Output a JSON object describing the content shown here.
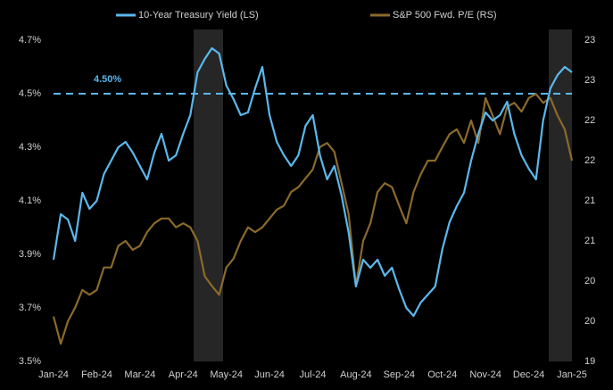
{
  "chart_data": {
    "type": "line",
    "categories": [
      "Jan-24",
      null,
      null,
      null,
      null,
      null,
      "Feb-24",
      null,
      null,
      null,
      null,
      null,
      "Mar-24",
      null,
      null,
      null,
      null,
      null,
      "Apr-24",
      null,
      null,
      null,
      null,
      null,
      "May-24",
      null,
      null,
      null,
      null,
      null,
      "Jun-24",
      null,
      null,
      null,
      null,
      null,
      "Jul-24",
      null,
      null,
      null,
      null,
      null,
      "Aug-24",
      null,
      null,
      null,
      null,
      null,
      "Sep-24",
      null,
      null,
      null,
      null,
      null,
      "Oct-24",
      null,
      null,
      null,
      null,
      null,
      "Nov-24",
      null,
      null,
      null,
      null,
      null,
      "Dec-24",
      null,
      null,
      null,
      null,
      null,
      "Jan-25"
    ],
    "series": [
      {
        "name": "10-Year Treasury Yield (LS)",
        "color": "#5bb8ec",
        "axis": "y",
        "values": [
          3.88,
          4.05,
          4.03,
          3.95,
          4.13,
          4.07,
          4.1,
          4.2,
          4.25,
          4.3,
          4.32,
          4.28,
          4.23,
          4.18,
          4.28,
          4.35,
          4.25,
          4.27,
          4.35,
          4.42,
          4.58,
          4.63,
          4.67,
          4.65,
          4.53,
          4.48,
          4.42,
          4.43,
          4.52,
          4.6,
          4.42,
          4.32,
          4.27,
          4.23,
          4.27,
          4.38,
          4.42,
          4.27,
          4.18,
          4.23,
          4.12,
          3.98,
          3.78,
          3.88,
          3.85,
          3.88,
          3.82,
          3.85,
          3.77,
          3.7,
          3.67,
          3.72,
          3.75,
          3.78,
          3.92,
          4.02,
          4.08,
          4.13,
          4.25,
          4.35,
          4.43,
          4.4,
          4.42,
          4.47,
          4.35,
          4.27,
          4.22,
          4.18,
          4.4,
          4.52,
          4.57,
          4.6,
          4.58
        ]
      },
      {
        "name": "S&P 500 Fwd. P/E (RS)",
        "color": "#8b6a2b",
        "axis": "y2",
        "values": [
          19.56,
          19.22,
          19.5,
          19.67,
          19.89,
          19.83,
          19.89,
          20.17,
          20.17,
          20.44,
          20.5,
          20.39,
          20.44,
          20.61,
          20.72,
          20.78,
          20.78,
          20.67,
          20.72,
          20.67,
          20.5,
          20.06,
          19.94,
          19.83,
          20.17,
          20.28,
          20.5,
          20.67,
          20.61,
          20.67,
          20.78,
          20.89,
          20.94,
          21.11,
          21.17,
          21.28,
          21.39,
          21.67,
          21.72,
          21.61,
          21.22,
          20.83,
          19.94,
          20.5,
          20.72,
          21.11,
          21.22,
          21.17,
          20.94,
          20.72,
          21.11,
          21.33,
          21.5,
          21.5,
          21.67,
          21.83,
          21.89,
          21.72,
          22.0,
          21.72,
          22.28,
          22.06,
          21.83,
          22.17,
          22.22,
          22.11,
          22.28,
          22.33,
          22.22,
          22.28,
          22.06,
          21.89,
          21.5
        ]
      }
    ],
    "ylim": [
      3.5,
      4.7
    ],
    "yticks": [
      {
        "value": 3.5,
        "label": "3.5%"
      },
      {
        "value": 3.7,
        "label": "3.7%"
      },
      {
        "value": 3.9,
        "label": "3.9%"
      },
      {
        "value": 4.1,
        "label": "4.1%"
      },
      {
        "value": 4.3,
        "label": "4.3%"
      },
      {
        "value": 4.5,
        "label": "4.5%"
      },
      {
        "value": 4.7,
        "label": "4.7%"
      }
    ],
    "y2lim": [
      19,
      23
    ],
    "y2ticks": [
      19,
      {
        "value": 19.5,
        "label": "20"
      },
      20,
      {
        "value": 20.5,
        "label": "21"
      },
      21,
      {
        "value": 21.5,
        "label": "22"
      },
      22,
      {
        "value": 22.5,
        "label": "23"
      },
      23
    ],
    "reference_line": {
      "value": 4.5,
      "label": "4.50%",
      "color": "#5bb8ec"
    },
    "legend": "top"
  }
}
